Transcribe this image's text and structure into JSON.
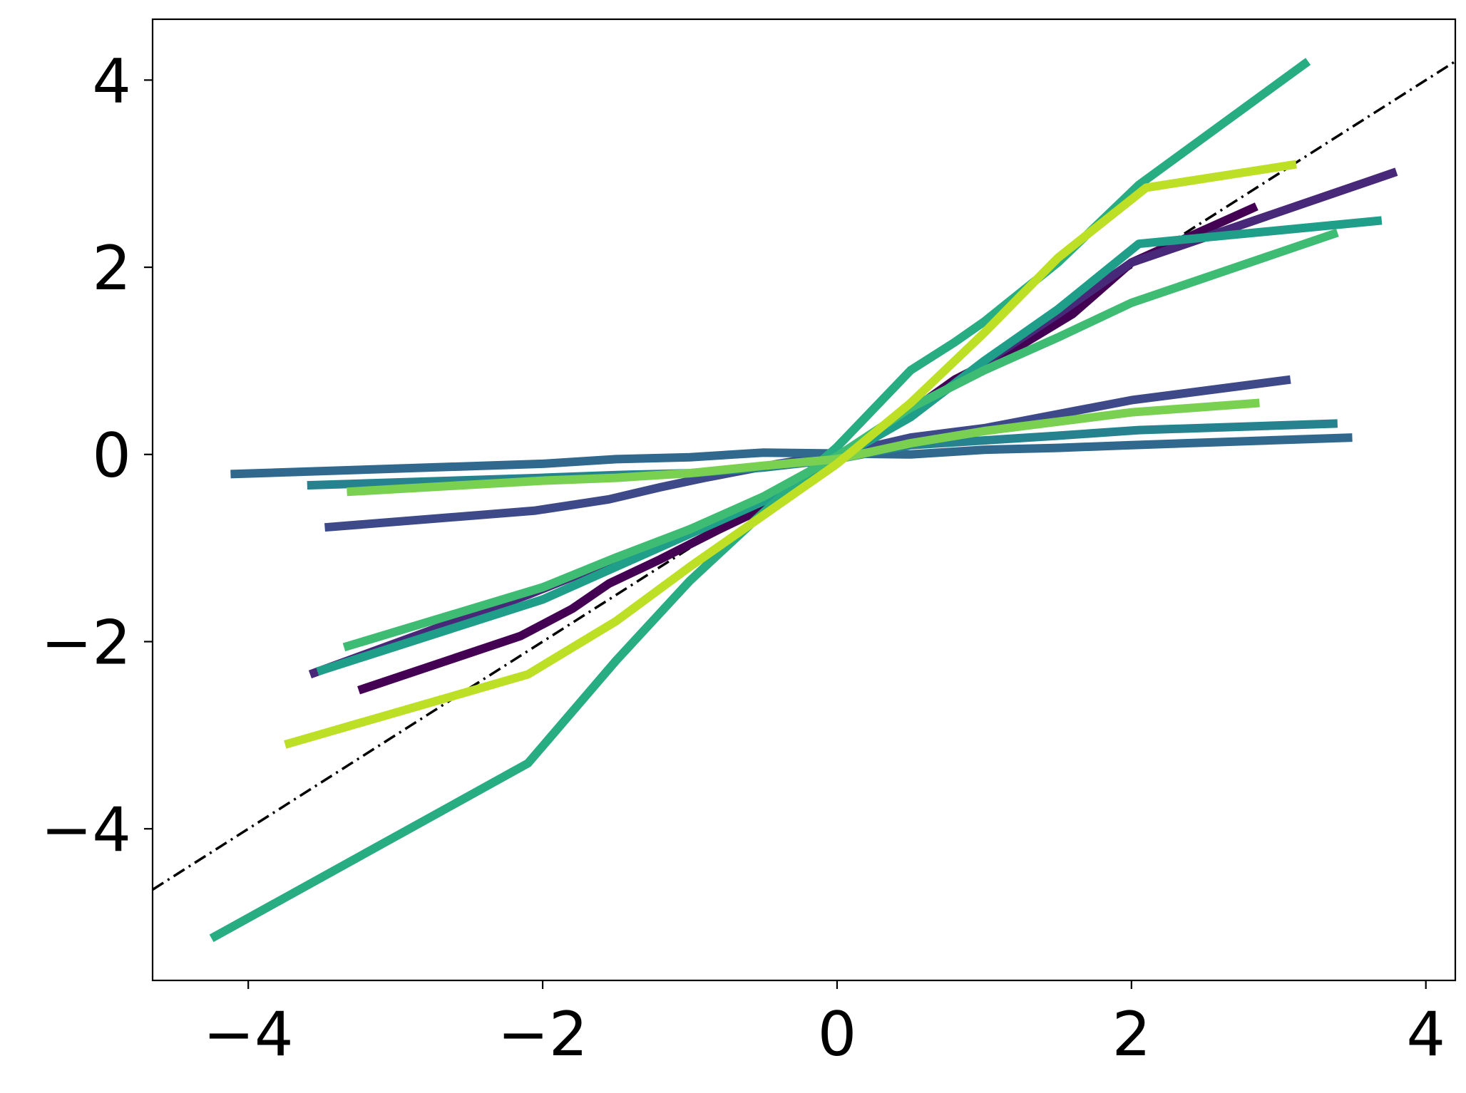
{
  "chart_data": {
    "type": "line",
    "title": "",
    "xlabel": "",
    "ylabel": "",
    "xlim": [
      -4.65,
      4.2
    ],
    "ylim": [
      -5.62,
      4.65
    ],
    "x_ticks": [
      -4,
      -2,
      0,
      2,
      4
    ],
    "y_ticks": [
      -4,
      -2,
      0,
      2,
      4
    ],
    "x_tick_labels": [
      "−4",
      "−2",
      "0",
      "2",
      "4"
    ],
    "y_tick_labels": [
      "−4",
      "−2",
      "0",
      "2",
      "4"
    ],
    "grid": false,
    "legend": "none",
    "reference_line": {
      "style": "dash-dot",
      "color": "#000000",
      "x": [
        -4.65,
        4.2
      ],
      "y": [
        -4.65,
        4.2
      ]
    },
    "series": [
      {
        "color": "#440154",
        "x": [
          -3.25,
          -2.15,
          -1.8,
          -1.55,
          -1.2,
          -0.8,
          -0.4,
          0,
          0.4,
          0.8,
          1.2,
          1.6,
          2.0,
          2.85
        ],
        "y": [
          -2.52,
          -1.94,
          -1.65,
          -1.38,
          -1.12,
          -0.8,
          -0.5,
          -0.05,
          0.35,
          0.8,
          1.12,
          1.5,
          2.05,
          2.65
        ]
      },
      {
        "color": "#482878",
        "x": [
          -3.58,
          -2.1,
          -1.5,
          -1.0,
          -0.5,
          0,
          0.5,
          1.0,
          1.5,
          2.0,
          3.8
        ],
        "y": [
          -2.35,
          -1.5,
          -1.12,
          -0.8,
          -0.48,
          -0.02,
          0.42,
          0.98,
          1.5,
          2.05,
          3.02
        ]
      },
      {
        "color": "#3e4989",
        "x": [
          -3.48,
          -2.05,
          -1.55,
          -1.2,
          -0.9,
          -0.4,
          0,
          0.5,
          1.0,
          2.0,
          3.08
        ],
        "y": [
          -0.78,
          -0.6,
          -0.48,
          -0.35,
          -0.25,
          -0.1,
          0,
          0.18,
          0.28,
          0.58,
          0.8
        ]
      },
      {
        "color": "#31688e",
        "x": [
          -4.12,
          -2.0,
          -1.5,
          -1.0,
          -0.5,
          0,
          0.5,
          1.0,
          1.5,
          2.0,
          3.5
        ],
        "y": [
          -0.21,
          -0.1,
          -0.05,
          -0.03,
          0.02,
          0.01,
          0.0,
          0.05,
          0.07,
          0.1,
          0.18
        ]
      },
      {
        "color": "#26828e",
        "x": [
          -3.6,
          -2.0,
          -1.5,
          -1.0,
          -0.5,
          0,
          0.5,
          1.0,
          1.5,
          2.05,
          3.4
        ],
        "y": [
          -0.33,
          -0.25,
          -0.22,
          -0.2,
          -0.14,
          -0.05,
          0.1,
          0.15,
          0.2,
          0.26,
          0.33
        ]
      },
      {
        "color": "#1f9e89",
        "x": [
          -3.53,
          -2.0,
          -1.5,
          -1.0,
          -0.5,
          0,
          0.5,
          1.0,
          1.5,
          2.05,
          3.7
        ],
        "y": [
          -2.32,
          -1.55,
          -1.2,
          -0.85,
          -0.5,
          -0.05,
          0.4,
          1.0,
          1.55,
          2.25,
          2.5
        ]
      },
      {
        "color": "#27ad81",
        "x": [
          -4.25,
          -2.1,
          -1.5,
          -1.0,
          -0.5,
          0,
          0.5,
          0.8,
          1.0,
          1.5,
          2.05,
          3.2
        ],
        "y": [
          -5.17,
          -3.3,
          -2.2,
          -1.35,
          -0.62,
          0.08,
          0.9,
          1.2,
          1.42,
          2.05,
          2.88,
          4.2
        ]
      },
      {
        "color": "#3fbc73",
        "x": [
          -3.35,
          -2.0,
          -1.5,
          -1.0,
          -0.5,
          0,
          0.5,
          1.0,
          1.5,
          2.0,
          3.4
        ],
        "y": [
          -2.06,
          -1.42,
          -1.1,
          -0.8,
          -0.45,
          -0.02,
          0.5,
          0.9,
          1.25,
          1.62,
          2.37
        ]
      },
      {
        "color": "#7ad151",
        "x": [
          -3.33,
          -2.0,
          -1.5,
          -1.0,
          -0.5,
          0,
          0.5,
          1.0,
          1.5,
          2.0,
          2.87
        ],
        "y": [
          -0.4,
          -0.28,
          -0.25,
          -0.2,
          -0.12,
          -0.05,
          0.12,
          0.25,
          0.35,
          0.45,
          0.55
        ]
      },
      {
        "color": "#bddf26",
        "x": [
          -3.75,
          -2.1,
          -1.5,
          -1.0,
          -0.5,
          0,
          0.5,
          1.0,
          1.5,
          2.1,
          3.12
        ],
        "y": [
          -3.1,
          -2.35,
          -1.78,
          -1.2,
          -0.65,
          -0.1,
          0.55,
          1.3,
          2.1,
          2.85,
          3.1
        ]
      }
    ]
  }
}
